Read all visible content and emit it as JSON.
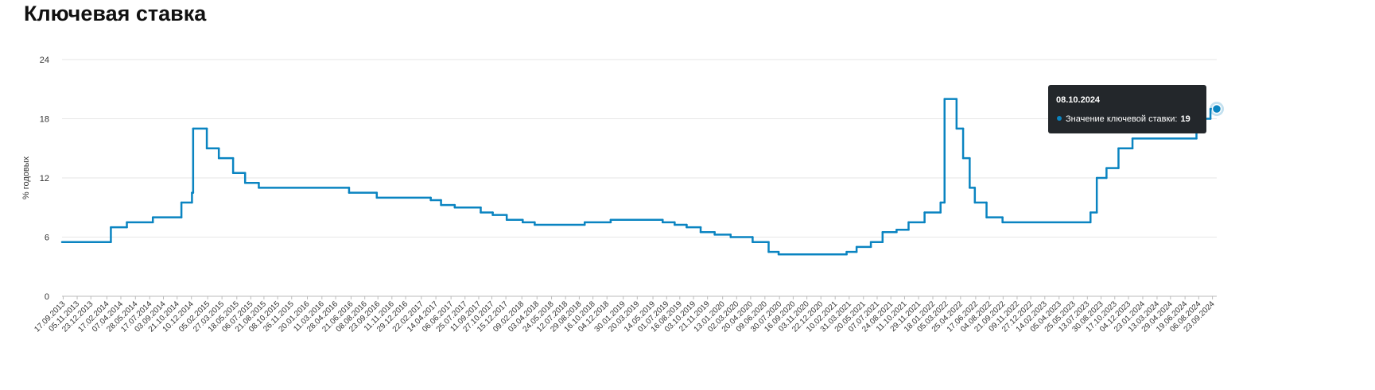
{
  "chart_data": {
    "type": "step-line",
    "title": "Ключевая ставка",
    "y_label": "% годовых",
    "x": [
      "13.09.2013",
      "03.03.2014",
      "28.04.2014",
      "28.07.2014",
      "05.11.2014",
      "12.12.2014",
      "16.12.2014",
      "02.02.2015",
      "16.03.2015",
      "05.05.2015",
      "16.06.2015",
      "03.08.2015",
      "14.06.2016",
      "19.09.2016",
      "27.03.2017",
      "02.05.2017",
      "19.06.2017",
      "18.09.2017",
      "30.10.2017",
      "18.12.2017",
      "12.02.2018",
      "26.03.2018",
      "17.09.2018",
      "17.12.2018",
      "17.06.2019",
      "29.07.2019",
      "09.09.2019",
      "28.10.2019",
      "16.12.2019",
      "10.02.2020",
      "27.04.2020",
      "22.06.2020",
      "27.07.2020",
      "22.03.2021",
      "26.04.2021",
      "15.06.2021",
      "26.07.2021",
      "13.09.2021",
      "25.10.2021",
      "20.12.2021",
      "14.02.2022",
      "28.02.2022",
      "11.04.2022",
      "04.05.2022",
      "27.05.2022",
      "14.06.2022",
      "25.07.2022",
      "19.09.2022",
      "24.07.2023",
      "15.08.2023",
      "18.09.2023",
      "30.10.2023",
      "18.12.2023",
      "29.07.2024",
      "16.09.2024",
      "08.10.2024"
    ],
    "series": [
      {
        "name": "Значение ключевой ставки:",
        "color": "#0a84c1",
        "values": [
          5.5,
          7,
          7.5,
          8,
          9.5,
          10.5,
          17,
          15,
          14,
          12.5,
          11.5,
          11,
          10.5,
          10,
          9.75,
          9.25,
          9,
          8.5,
          8.25,
          7.75,
          7.5,
          7.25,
          7.5,
          7.75,
          7.5,
          7.25,
          7,
          6.5,
          6.25,
          6,
          5.5,
          4.5,
          4.25,
          4.5,
          5,
          5.5,
          6.5,
          6.75,
          7.5,
          8.5,
          9.5,
          20,
          17,
          14,
          11,
          9.5,
          8,
          7.5,
          8.5,
          12,
          13,
          15,
          16,
          18,
          19,
          19
        ]
      }
    ],
    "xlim": [
      "13.09.2013",
      "08.10.2024"
    ],
    "xticks": [
      "17.09.2013",
      "05.11.2013",
      "23.12.2013",
      "17.02.2014",
      "07.04.2014",
      "28.05.2014",
      "17.07.2014",
      "03.09.2014",
      "21.10.2014",
      "10.12.2014",
      "05.02.2015",
      "27.03.2015",
      "18.05.2015",
      "06.07.2015",
      "21.08.2015",
      "08.10.2015",
      "26.11.2015",
      "20.01.2016",
      "11.03.2016",
      "28.04.2016",
      "21.06.2016",
      "08.08.2016",
      "23.09.2016",
      "11.11.2016",
      "29.12.2016",
      "22.02.2017",
      "14.04.2017",
      "06.06.2017",
      "25.07.2017",
      "11.09.2017",
      "27.10.2017",
      "15.12.2017",
      "09.02.2018",
      "03.04.2018",
      "24.05.2018",
      "12.07.2018",
      "29.08.2018",
      "16.10.2018",
      "04.12.2018",
      "30.01.2019",
      "20.03.2019",
      "14.05.2019",
      "01.07.2019",
      "16.08.2019",
      "03.10.2019",
      "21.11.2019",
      "13.01.2020",
      "02.03.2020",
      "20.04.2020",
      "09.06.2020",
      "30.07.2020",
      "16.09.2020",
      "03.11.2020",
      "22.12.2020",
      "10.02.2021",
      "31.03.2021",
      "20.05.2021",
      "07.07.2021",
      "24.08.2021",
      "11.10.2021",
      "29.11.2021",
      "18.01.2022",
      "05.03.2022",
      "25.04.2022",
      "17.06.2022",
      "04.08.2022",
      "21.09.2022",
      "09.11.2022",
      "27.12.2022",
      "14.02.2023",
      "05.04.2023",
      "25.05.2023",
      "13.07.2023",
      "30.08.2023",
      "17.10.2023",
      "04.12.2023",
      "23.01.2024",
      "13.03.2024",
      "29.04.2024",
      "19.06.2024",
      "06.08.2024",
      "23.09.2024"
    ],
    "ylim": [
      0,
      24
    ],
    "yticks": [
      0,
      6,
      12,
      18,
      24
    ],
    "grid": true
  }
}
